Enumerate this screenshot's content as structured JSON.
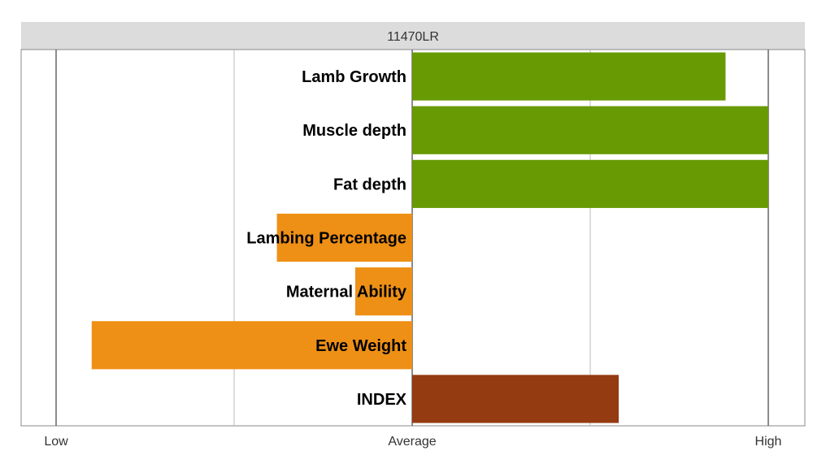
{
  "chart_data": {
    "type": "bar",
    "orientation": "horizontal",
    "title": "11470LR",
    "xlabel": "",
    "ylabel": "",
    "xlim": [
      -1,
      1
    ],
    "ticks": [
      {
        "value": -1,
        "label": "Low"
      },
      {
        "value": 0,
        "label": "Average"
      },
      {
        "value": 1,
        "label": "High"
      }
    ],
    "grid": true,
    "categories": [
      "Lamb Growth",
      "Muscle depth",
      "Fat depth",
      "Lambing Percentage",
      "Maternal Ability",
      "Ewe Weight",
      "INDEX"
    ],
    "values": [
      0.88,
      1.0,
      1.0,
      -0.38,
      -0.16,
      -0.9,
      0.58
    ],
    "colors": [
      "#689a04",
      "#689a04",
      "#689a04",
      "#ee9016",
      "#ee9016",
      "#ee9016",
      "#943b11"
    ]
  }
}
